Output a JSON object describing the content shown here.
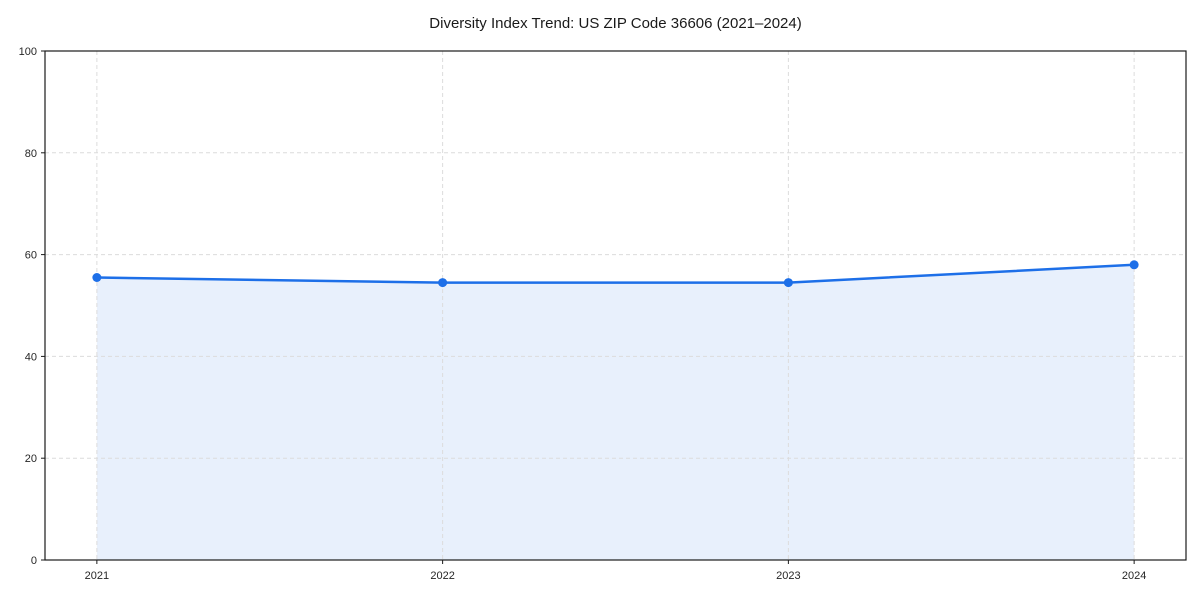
{
  "chart_data": {
    "type": "area",
    "title": "Diversity Index Trend: US ZIP Code 36606 (2021–2024)",
    "x": [
      "2021",
      "2022",
      "2023",
      "2024"
    ],
    "values": [
      55.5,
      54.5,
      54.5,
      58.0
    ],
    "ylim": [
      0,
      100
    ],
    "yticks": [
      0,
      20,
      40,
      60,
      80,
      100
    ],
    "grid": true,
    "legend": "none",
    "colors": {
      "line": "#1d6fe8",
      "marker": "#1d6fe8",
      "fill": "#e8f0fc",
      "grid": "#dcdcdc",
      "spine": "#1a1a1a",
      "tick_label": "#262626",
      "background": "#ffffff"
    }
  }
}
